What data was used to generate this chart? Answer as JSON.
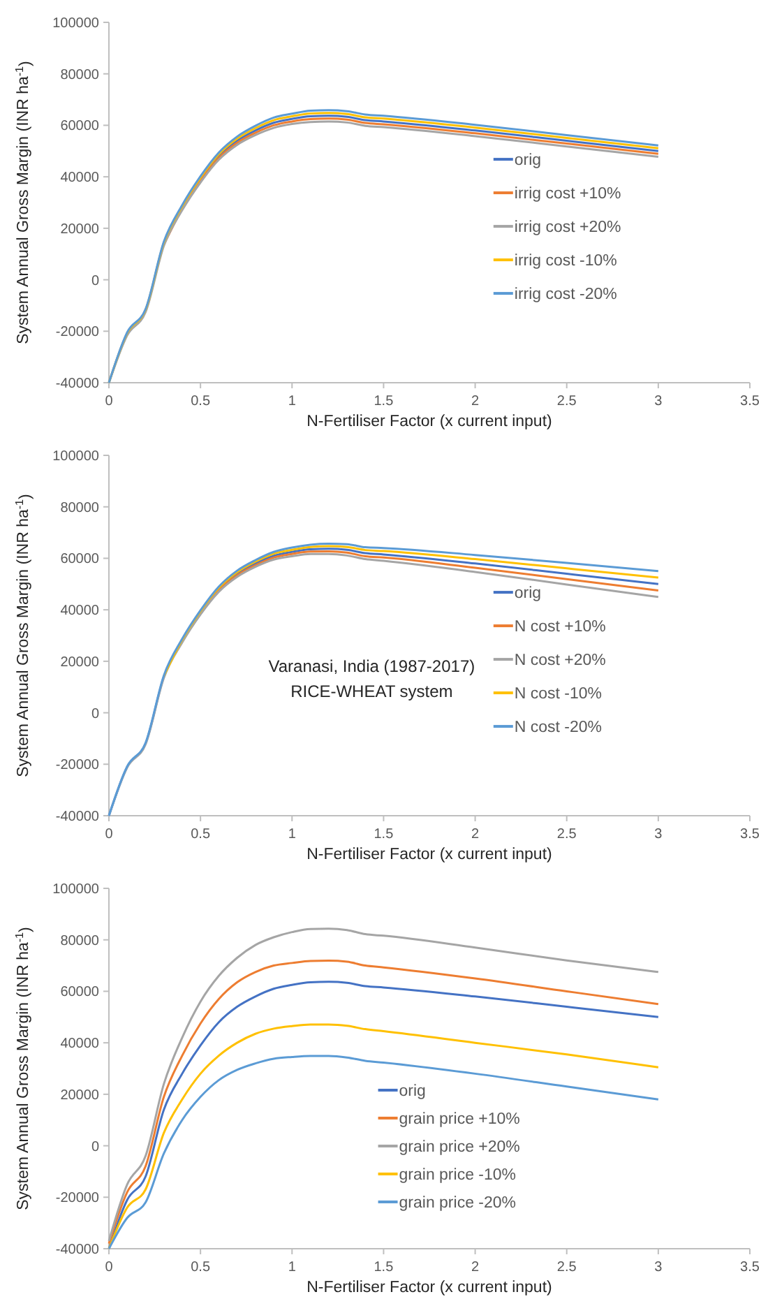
{
  "chart_data": [
    {
      "type": "line",
      "xlabel": "N-Fertiliser Factor (x current input)",
      "ylabel": "System Annual Gross Margin (INR ha$^{-1}$)",
      "xlim": [
        0,
        3.5
      ],
      "xticks": [
        0,
        0.5,
        1,
        1.5,
        2,
        2.5,
        3,
        3.5
      ],
      "ylim": [
        -40000,
        100000
      ],
      "yticks": [
        -40000,
        -20000,
        0,
        20000,
        40000,
        60000,
        80000,
        100000
      ],
      "grid": false,
      "legend": "right",
      "marker": "none",
      "line_style": "solid",
      "x": [
        0,
        0.1,
        0.2,
        0.3,
        0.4,
        0.5,
        0.6,
        0.7,
        0.8,
        0.9,
        1,
        1.1,
        1.2,
        1.3,
        1.4,
        1.5,
        2,
        2.5,
        3
      ],
      "series": [
        {
          "name": "orig",
          "color": "#4472c4",
          "values": [
            -40000,
            -21000,
            -12000,
            14000,
            28000,
            39000,
            48000,
            54000,
            58000,
            61000,
            62500,
            63500,
            63700,
            63300,
            62000,
            61500,
            58000,
            54000,
            50000
          ]
        },
        {
          "name": "irrig cost +10%",
          "color": "#ed7d31",
          "values": [
            null,
            null,
            null,
            13600,
            27500,
            38400,
            47300,
            53200,
            57100,
            60000,
            61500,
            62400,
            62600,
            62200,
            60900,
            60400,
            56900,
            52900,
            48900
          ]
        },
        {
          "name": "irrig cost +20%",
          "color": "#a5a5a5",
          "values": [
            -40000,
            -21600,
            -12600,
            13200,
            27000,
            37800,
            46600,
            52400,
            56200,
            59000,
            60500,
            61300,
            61500,
            61100,
            59800,
            59300,
            55800,
            51800,
            47800
          ]
        },
        {
          "name": "irrig cost -10%",
          "color": "#ffc000",
          "values": [
            -40000,
            -20700,
            -11700,
            14400,
            28500,
            39600,
            48700,
            54800,
            58900,
            62000,
            63500,
            64600,
            64800,
            64400,
            63100,
            62600,
            59100,
            55100,
            51100
          ]
        },
        {
          "name": "irrig cost -20%",
          "color": "#5b9bd5",
          "values": [
            -40000,
            -20400,
            -11400,
            14800,
            29000,
            40200,
            49400,
            55600,
            59800,
            63000,
            64500,
            65700,
            65900,
            65500,
            64200,
            63700,
            60200,
            56200,
            52200
          ]
        }
      ]
    },
    {
      "type": "line",
      "xlabel": "N-Fertiliser Factor (x current input)",
      "ylabel": "System Annual Gross Margin (INR ha$^{-1}$)",
      "xlim": [
        0,
        3.5
      ],
      "xticks": [
        0,
        0.5,
        1,
        1.5,
        2,
        2.5,
        3,
        3.5
      ],
      "ylim": [
        -40000,
        100000
      ],
      "yticks": [
        -40000,
        -20000,
        0,
        20000,
        40000,
        60000,
        80000,
        100000
      ],
      "grid": false,
      "legend": "right",
      "marker": "none",
      "line_style": "solid",
      "annotations": [
        "Varanasi, India  (1987-2017)",
        "RICE-WHEAT system"
      ],
      "x": [
        0,
        0.1,
        0.2,
        0.3,
        0.4,
        0.5,
        0.6,
        0.7,
        0.8,
        0.9,
        1,
        1.1,
        1.2,
        1.3,
        1.4,
        1.5,
        2,
        2.5,
        3
      ],
      "series": [
        {
          "name": "orig",
          "color": "#4472c4",
          "values": [
            -40000,
            -21000,
            -12000,
            14000,
            28000,
            39000,
            48000,
            54000,
            58000,
            61000,
            62500,
            63500,
            63700,
            63300,
            62000,
            61500,
            58000,
            54000,
            50000
          ]
        },
        {
          "name": "N cost +10%",
          "color": "#ed7d31",
          "values": [
            null,
            null,
            null,
            null,
            27700,
            38600,
            47500,
            53400,
            57300,
            60300,
            61700,
            62600,
            62700,
            62200,
            60800,
            60300,
            56300,
            51900,
            47500
          ]
        },
        {
          "name": "N cost +20%",
          "color": "#a5a5a5",
          "values": [
            -40000,
            -21200,
            -12300,
            13500,
            27300,
            38200,
            47000,
            52800,
            56700,
            59500,
            60800,
            61700,
            61700,
            61100,
            59700,
            59000,
            54700,
            49800,
            45000
          ]
        },
        {
          "name": "N cost -10%",
          "color": "#ffc000",
          "values": [
            null,
            null,
            null,
            14300,
            28300,
            39400,
            48500,
            54600,
            58700,
            61800,
            63300,
            64400,
            64700,
            64400,
            63200,
            62800,
            59700,
            56100,
            52500
          ]
        },
        {
          "name": "N cost -20%",
          "color": "#5b9bd5",
          "values": [
            -40000,
            -20800,
            -11700,
            14500,
            28700,
            39800,
            49000,
            55200,
            59300,
            62500,
            64200,
            65300,
            65700,
            65500,
            64300,
            64000,
            61300,
            58200,
            55000
          ]
        }
      ]
    },
    {
      "type": "line",
      "xlabel": "N-Fertiliser Factor (x current input)",
      "ylabel": "System Annual Gross Margin (INR ha$^{-1}$)",
      "xlim": [
        0,
        3.5
      ],
      "xticks": [
        0,
        0.5,
        1,
        1.5,
        2,
        2.5,
        3,
        3.5
      ],
      "ylim": [
        -40000,
        100000
      ],
      "yticks": [
        -40000,
        -20000,
        0,
        20000,
        40000,
        60000,
        80000,
        100000
      ],
      "grid": false,
      "legend": "bottom",
      "marker": "none",
      "line_style": "solid",
      "x": [
        0,
        0.1,
        0.2,
        0.3,
        0.4,
        0.5,
        0.6,
        0.7,
        0.8,
        0.9,
        1,
        1.1,
        1.2,
        1.3,
        1.4,
        1.5,
        2,
        2.5,
        3
      ],
      "series": [
        {
          "name": "orig",
          "color": "#4472c4",
          "values": [
            -40000,
            -21000,
            -12000,
            14000,
            28000,
            39000,
            48000,
            54000,
            58000,
            61000,
            62500,
            63500,
            63700,
            63300,
            62000,
            61500,
            58000,
            54000,
            50000
          ]
        },
        {
          "name": "grain price +10%",
          "color": "#ed7d31",
          "values": [
            -38000,
            -18000,
            -8000,
            19000,
            35000,
            47500,
            57000,
            63500,
            67500,
            70000,
            71000,
            71800,
            71900,
            71500,
            70000,
            69300,
            65000,
            60000,
            55000
          ]
        },
        {
          "name": "grain price +20%",
          "color": "#a5a5a5",
          "values": [
            -37000,
            -15000,
            -4000,
            24000,
            42000,
            56000,
            66000,
            73000,
            78000,
            81000,
            83000,
            84200,
            84300,
            83800,
            82200,
            81600,
            77000,
            72000,
            67500
          ]
        },
        {
          "name": "grain price -10%",
          "color": "#ffc000",
          "values": [
            -40000,
            -24000,
            -17000,
            5000,
            18000,
            28000,
            35000,
            40000,
            43500,
            45500,
            46500,
            47100,
            47100,
            46600,
            45300,
            44500,
            40000,
            35500,
            30500
          ]
        },
        {
          "name": "grain price -20%",
          "color": "#5b9bd5",
          "values": [
            -40000,
            -28000,
            -22000,
            -3000,
            10000,
            19000,
            25500,
            29500,
            32000,
            33800,
            34500,
            34900,
            34900,
            34300,
            33000,
            32300,
            28000,
            23000,
            18000
          ]
        }
      ]
    }
  ]
}
